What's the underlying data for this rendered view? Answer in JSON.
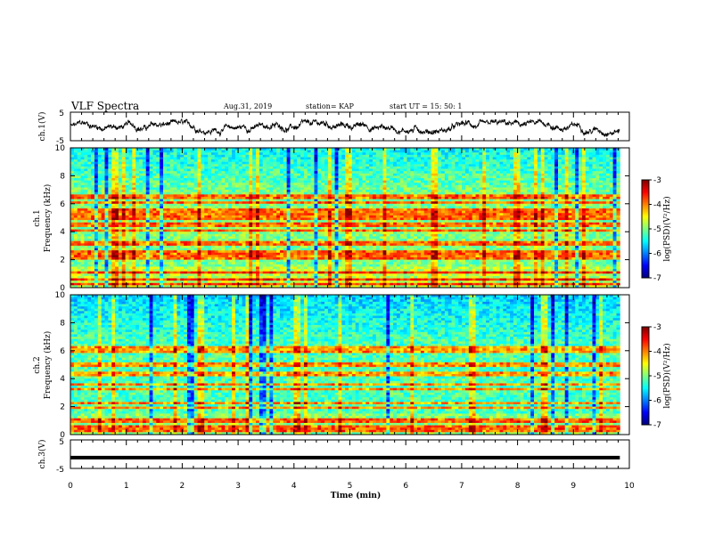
{
  "header": {
    "title": "VLF Spectra",
    "date": "Aug.31, 2019",
    "station": "station= KAP",
    "start": "start  UT =   15: 50: 1"
  },
  "chart_data": [
    {
      "type": "line",
      "panel": "ch1-waveform",
      "ylabel": "ch.1(V)",
      "ylim": [
        -5,
        5
      ],
      "y_ticks": [
        "5",
        "-5"
      ],
      "x_range_min": [
        0,
        9.83
      ],
      "note_values": "noisy waveform roughly between -3 and 2 V"
    },
    {
      "type": "heatmap",
      "panel": "ch1-spectrogram",
      "ylabel": "ch.1\nFrequency (kHz)",
      "ylim": [
        0,
        10
      ],
      "y_ticks": [
        "0",
        "2",
        "4",
        "6",
        "8",
        "10"
      ],
      "colorbar": {
        "label": "log(PSD)(V²/Hz)",
        "ticks": [
          "-3",
          "-4",
          "-5",
          "-6",
          "-7"
        ],
        "range": [
          -7,
          -3
        ]
      },
      "bands_khz": [
        0.3,
        0.6,
        1.1,
        2.1,
        2.3,
        2.5,
        3.1,
        3.3,
        4.1,
        4.5,
        5.0,
        5.2,
        5.4,
        5.6,
        6.1,
        6.5
      ]
    },
    {
      "type": "heatmap",
      "panel": "ch2-spectrogram",
      "ylabel": "ch.2\nFrequency (kHz)",
      "ylim": [
        0,
        10
      ],
      "y_ticks": [
        "0",
        "2",
        "4",
        "6",
        "8",
        "10"
      ],
      "colorbar": {
        "label": "log(PSD)(V²/Hz)",
        "ticks": [
          "-3",
          "-4",
          "-5",
          "-6",
          "-7"
        ],
        "range": [
          -7,
          -3
        ]
      },
      "bands_khz": [
        0.2,
        0.5,
        1.0,
        1.9,
        2.3,
        3.3,
        3.6,
        4.2,
        4.4,
        5.0,
        6.0,
        6.3
      ]
    },
    {
      "type": "line",
      "panel": "ch3-waveform",
      "ylabel": "ch.3(V)",
      "ylim": [
        -5,
        5
      ],
      "y_ticks": [
        "5",
        "-5"
      ],
      "values_constant": -1.2
    }
  ],
  "x_axis": {
    "label": "Time  (min)",
    "range": [
      0,
      10
    ],
    "ticks": [
      "0",
      "1",
      "2",
      "3",
      "4",
      "5",
      "6",
      "7",
      "8",
      "9",
      "10"
    ]
  }
}
